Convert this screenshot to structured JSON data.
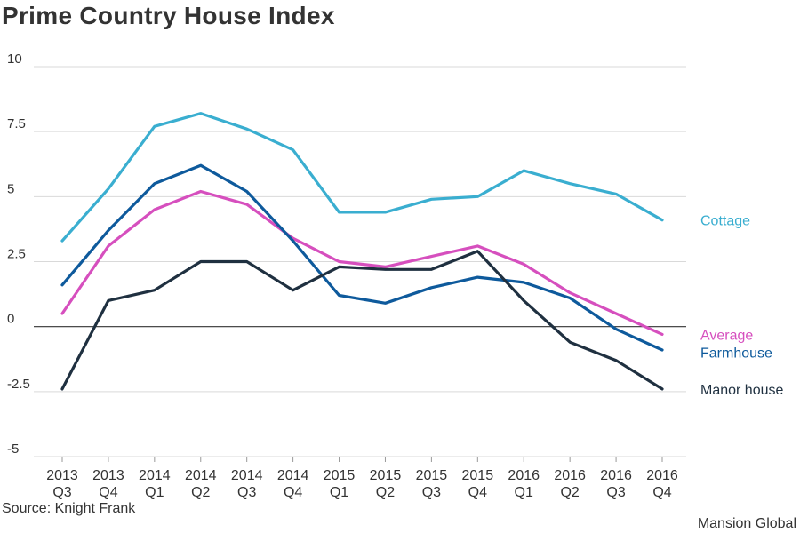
{
  "title": "Prime Country House Index",
  "source": "Source: Knight Frank",
  "credit": "Mansion Global",
  "chart_data": {
    "type": "line",
    "title": "Prime Country House Index",
    "xlabel": "",
    "ylabel": "",
    "categories": [
      [
        "2013",
        "Q3"
      ],
      [
        "2013",
        "Q4"
      ],
      [
        "2014",
        "Q1"
      ],
      [
        "2014",
        "Q2"
      ],
      [
        "2014",
        "Q3"
      ],
      [
        "2014",
        "Q4"
      ],
      [
        "2015",
        "Q1"
      ],
      [
        "2015",
        "Q2"
      ],
      [
        "2015",
        "Q3"
      ],
      [
        "2015",
        "Q4"
      ],
      [
        "2016",
        "Q1"
      ],
      [
        "2016",
        "Q2"
      ],
      [
        "2016",
        "Q3"
      ],
      [
        "2016",
        "Q4"
      ]
    ],
    "ylim": [
      -5,
      10
    ],
    "yticks": [
      {
        "value": 10,
        "label": "10"
      },
      {
        "value": 7.5,
        "label": "7.5"
      },
      {
        "value": 5,
        "label": "5"
      },
      {
        "value": 2.5,
        "label": "2.5"
      },
      {
        "value": 0,
        "label": "0"
      },
      {
        "value": -2.5,
        "label": "-2.5"
      },
      {
        "value": -5,
        "label": "-5"
      }
    ],
    "grid": true,
    "legend": "right, labels at line ends",
    "series": [
      {
        "name": "Cottage",
        "color": "#3aaed0",
        "values": [
          3.3,
          5.3,
          7.7,
          8.2,
          7.6,
          6.8,
          4.4,
          4.4,
          4.9,
          5.0,
          6.0,
          5.5,
          5.1,
          4.1
        ]
      },
      {
        "name": "Average",
        "color": "#d64fbe",
        "values": [
          0.5,
          3.1,
          4.5,
          5.2,
          4.7,
          3.4,
          2.5,
          2.3,
          2.7,
          3.1,
          2.4,
          1.3,
          0.5,
          -0.3
        ]
      },
      {
        "name": "Farmhouse",
        "color": "#0e5a9c",
        "values": [
          1.6,
          3.7,
          5.5,
          6.2,
          5.2,
          3.3,
          1.2,
          0.9,
          1.5,
          1.9,
          1.7,
          1.1,
          -0.1,
          -0.9
        ]
      },
      {
        "name": "Manor house",
        "color": "#1f3040",
        "values": [
          -2.4,
          1.0,
          1.4,
          2.5,
          2.5,
          1.4,
          2.3,
          2.2,
          2.2,
          2.9,
          1.0,
          -0.6,
          -1.3,
          -2.4
        ]
      }
    ]
  }
}
